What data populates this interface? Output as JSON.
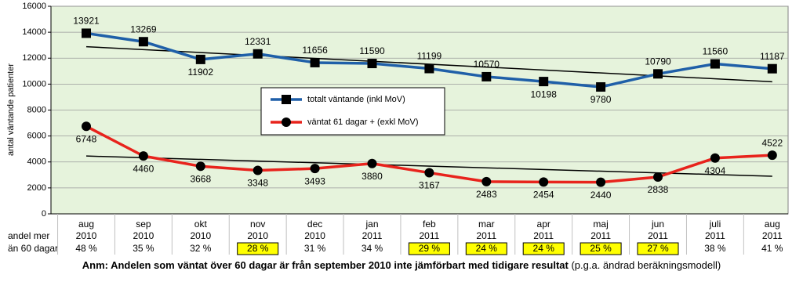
{
  "chart_data": {
    "type": "line",
    "y_label": "antal väntande patienter",
    "categories": [
      "aug",
      "sep",
      "okt",
      "nov",
      "dec",
      "jan",
      "feb",
      "mar",
      "apr",
      "maj",
      "jun",
      "juli",
      "aug"
    ],
    "category_years": [
      "2010",
      "2010",
      "2010",
      "2010",
      "2010",
      "2011",
      "2011",
      "2011",
      "2011",
      "2011",
      "2011",
      "2011",
      "2011"
    ],
    "series": [
      {
        "name": "totalt väntande (inkl MoV)",
        "color": "#1f5fa8",
        "marker": "square",
        "values": [
          13921,
          13269,
          11902,
          12331,
          11656,
          11590,
          11199,
          10570,
          10198,
          9780,
          10790,
          11560,
          11187
        ]
      },
      {
        "name": "väntat 61 dagar + (exkl MoV)",
        "color": "#e8231c",
        "marker": "circle",
        "values": [
          6748,
          4460,
          3668,
          3348,
          3493,
          3880,
          3167,
          2483,
          2454,
          2440,
          2838,
          4304,
          4522
        ]
      }
    ],
    "marker_color": "#000000",
    "trendline": true,
    "trendline_color": "#000000",
    "ylim": [
      0,
      16000
    ],
    "yticks": [
      0,
      2000,
      4000,
      6000,
      8000,
      10000,
      12000,
      14000,
      16000
    ],
    "grid": true,
    "plot_background": "#e6f3dc",
    "legend": "center",
    "share_row": {
      "label": [
        "andel mer",
        "än 60 dagar"
      ],
      "values": [
        48,
        35,
        32,
        28,
        31,
        34,
        29,
        24,
        24,
        25,
        27,
        38,
        41
      ],
      "value_labels": [
        "48 %",
        "35 %",
        "32 %",
        "28 %",
        "31 %",
        "34 %",
        "29 %",
        "24 %",
        "24 %",
        "25 %",
        "27 %",
        "38 %",
        "41 %"
      ],
      "highlighted": [
        false,
        false,
        false,
        true,
        false,
        false,
        true,
        true,
        true,
        true,
        true,
        false,
        false
      ],
      "highlight_color": "#ffff00"
    },
    "note": {
      "bold": "Anm: Andelen som väntat över 60 dagar är från september 2010 inte jämförbart med tidigare resultat",
      "normal": " (p.g.a. ändrad beräkningsmodell)"
    }
  }
}
